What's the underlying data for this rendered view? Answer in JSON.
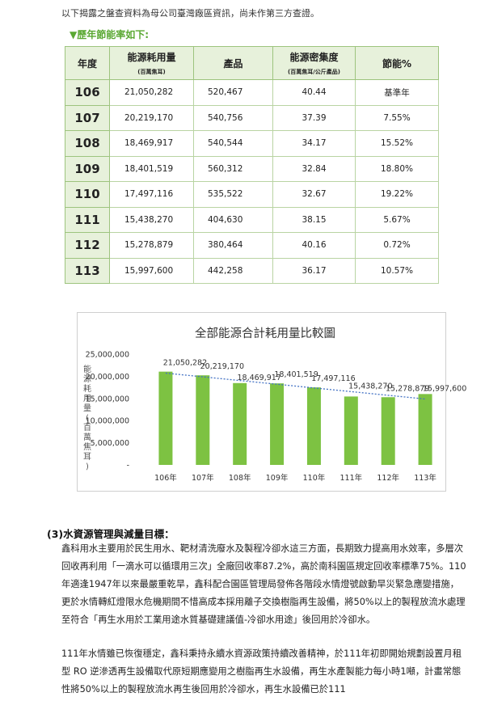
{
  "intro_text": "以下揭露之盤查資料為母公司臺灣廠區資訊，尚未作第三方查證。",
  "subhead": "▼歷年節能率如下:",
  "table": {
    "headers": {
      "year": "年度",
      "energy": "能源耗用量",
      "energy_unit": "(百萬焦耳)",
      "product": "產品",
      "intensity": "能源密集度",
      "intensity_unit": "(百萬焦耳/公斤產品)",
      "saving": "節能%"
    },
    "rows": [
      {
        "year": "106",
        "energy": "21,050,282",
        "product": "520,467",
        "intensity": "40.44",
        "saving": "基準年"
      },
      {
        "year": "107",
        "energy": "20,219,170",
        "product": "540,756",
        "intensity": "37.39",
        "saving": "7.55%"
      },
      {
        "year": "108",
        "energy": "18,469,917",
        "product": "540,544",
        "intensity": "34.17",
        "saving": "15.52%"
      },
      {
        "year": "109",
        "energy": "18,401,519",
        "product": "560,312",
        "intensity": "32.84",
        "saving": "18.80%"
      },
      {
        "year": "110",
        "energy": "17,497,116",
        "product": "535,522",
        "intensity": "32.67",
        "saving": "19.22%"
      },
      {
        "year": "111",
        "energy": "15,438,270",
        "product": "404,630",
        "intensity": "38.15",
        "saving": "5.67%"
      },
      {
        "year": "112",
        "energy": "15,278,879",
        "product": "380,464",
        "intensity": "40.16",
        "saving": "0.72%"
      },
      {
        "year": "113",
        "energy": "15,997,600",
        "product": "442,258",
        "intensity": "36.17",
        "saving": "10.57%"
      }
    ]
  },
  "chart_data": {
    "type": "bar",
    "title": "全部能源合計耗用量比較圖",
    "ylabel": "能源耗用量(百萬焦耳)",
    "categories": [
      "106年",
      "107年",
      "108年",
      "109年",
      "110年",
      "111年",
      "112年",
      "113年"
    ],
    "values": [
      21050282,
      20219170,
      18469917,
      18401519,
      17497116,
      15438270,
      15278879,
      15997600
    ],
    "data_labels": [
      "21,050,282",
      "20,219,170",
      "18,469,917",
      "18,401,519",
      "17,497,116",
      "15,438,270",
      "15,278,879",
      "15,997,600"
    ],
    "yticks": [
      "-",
      "5,000,000",
      "10,000,000",
      "15,000,000",
      "20,000,000",
      "25,000,000"
    ],
    "ylim": [
      0,
      25000000
    ],
    "trendline": "linear, dotted",
    "grid": false,
    "bar_color": "#7dc242",
    "trend_color": "#4472c4"
  },
  "section": {
    "title": "(3)水資源管理與減量目標：",
    "p1": "鑫科用水主要用於民生用水、靶材清洗廢水及製程冷卻水這三方面，長期致力提高用水效率，多層次回收再利用「一滴水可以循環用三次」全廠回收率87.2%，高於南科園區規定回收率標準75%。110年適逢1947年以來最嚴重乾旱，鑫科配合園區管理局發佈各階段水情燈號啟動旱災緊急應變措施，更於水情轉紅燈限水危機期間不惜高成本採用離子交換樹脂再生設備，將50%以上的製程放流水處理至符合「再生水用於工業用途水質基礎建議值-冷卻水用途」後回用於冷卻水。",
    "p2": "111年水情雖已恢復穩定，鑫科秉持永續水資源政策持續改善精神，於111年初即開始規劃設置月租型 RO 逆滲透再生設備取代原短期應變用之樹脂再生水設備，再生水產製能力每小時1噸，計畫常態性將50%以上的製程放流水再生後回用於冷卻水，再生水設備已於111"
  }
}
